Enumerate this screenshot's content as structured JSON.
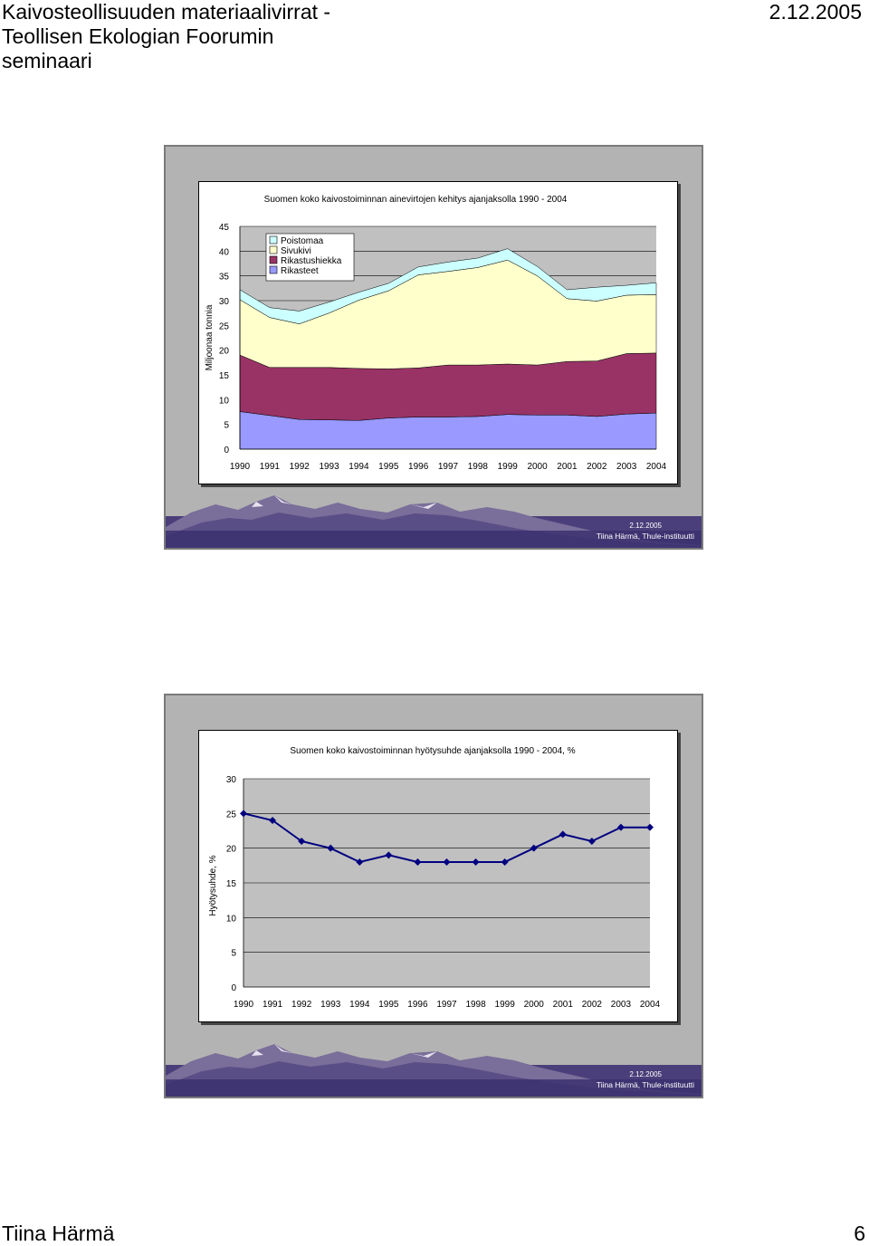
{
  "header": {
    "title": "Kaivosteollisuuden materiaalivirrat -\nTeollisen Ekologian Foorumin\nseminaari",
    "date": "2.12.2005"
  },
  "footer": {
    "author": "Tiina Härmä",
    "page": "6"
  },
  "slides": [
    {
      "footer_date": "2.12.2005",
      "footer_author": "Tiina Härmä, Thule-instituutti"
    },
    {
      "footer_date": "2.12.2005",
      "footer_author": "Tiina Härmä, Thule-instituutti"
    }
  ],
  "chart_data": [
    {
      "type": "area",
      "stacked": true,
      "title": "Suomen koko kaivostoiminnan ainevirtojen kehitys ajanjaksolla 1990 - 2004",
      "ylabel": "Miljoonaa tonnia",
      "xlabel": "",
      "ylim": [
        0,
        45
      ],
      "yticks": [
        0,
        5,
        10,
        15,
        20,
        25,
        30,
        35,
        40,
        45
      ],
      "categories": [
        "1990",
        "1991",
        "1992",
        "1993",
        "1994",
        "1995",
        "1996",
        "1997",
        "1998",
        "1999",
        "2000",
        "2001",
        "2002",
        "2003",
        "2004"
      ],
      "legend_position": "top-left",
      "series": [
        {
          "name": "Rikasteet",
          "color": "#9999ff",
          "values": [
            7.6,
            6.8,
            6.0,
            5.9,
            5.8,
            6.3,
            6.5,
            6.5,
            6.6,
            7.0,
            6.9,
            6.9,
            6.6,
            7.1,
            7.3
          ]
        },
        {
          "name": "Rikastushiekka",
          "color": "#993366",
          "values": [
            11.4,
            9.7,
            10.5,
            10.6,
            10.5,
            9.9,
            9.9,
            10.5,
            10.4,
            10.2,
            10.1,
            10.8,
            11.2,
            12.2,
            12.1
          ]
        },
        {
          "name": "Sivukivi",
          "color": "#ffffcc",
          "values": [
            11.2,
            10.1,
            8.8,
            11.0,
            13.8,
            15.8,
            18.8,
            18.9,
            19.7,
            21.0,
            18.0,
            12.7,
            12.1,
            11.8,
            11.8
          ]
        },
        {
          "name": "Poistomaa",
          "color": "#ccffff",
          "values": [
            2.0,
            2.0,
            2.6,
            2.2,
            1.6,
            1.5,
            1.6,
            1.9,
            1.9,
            2.3,
            1.9,
            1.8,
            2.8,
            2.0,
            2.4
          ]
        }
      ],
      "grid": "horizontal",
      "plot_background": "#c0c0c0"
    },
    {
      "type": "line",
      "title": "Suomen koko kaivostoiminnan hyötysuhde ajanjaksolla 1990 - 2004, %",
      "ylabel": "Hyötysuhde, %",
      "xlabel": "",
      "ylim": [
        0,
        30
      ],
      "yticks": [
        0,
        5,
        10,
        15,
        20,
        25,
        30
      ],
      "categories": [
        "1990",
        "1991",
        "1992",
        "1993",
        "1994",
        "1995",
        "1996",
        "1997",
        "1998",
        "1999",
        "2000",
        "2001",
        "2002",
        "2003",
        "2004"
      ],
      "series": [
        {
          "name": "",
          "color": "#000080",
          "values": [
            25,
            24,
            21,
            20,
            18,
            19,
            18,
            18,
            18,
            18,
            20,
            22,
            21,
            23,
            23
          ]
        }
      ],
      "grid": "horizontal",
      "plot_background": "#c0c0c0"
    }
  ]
}
